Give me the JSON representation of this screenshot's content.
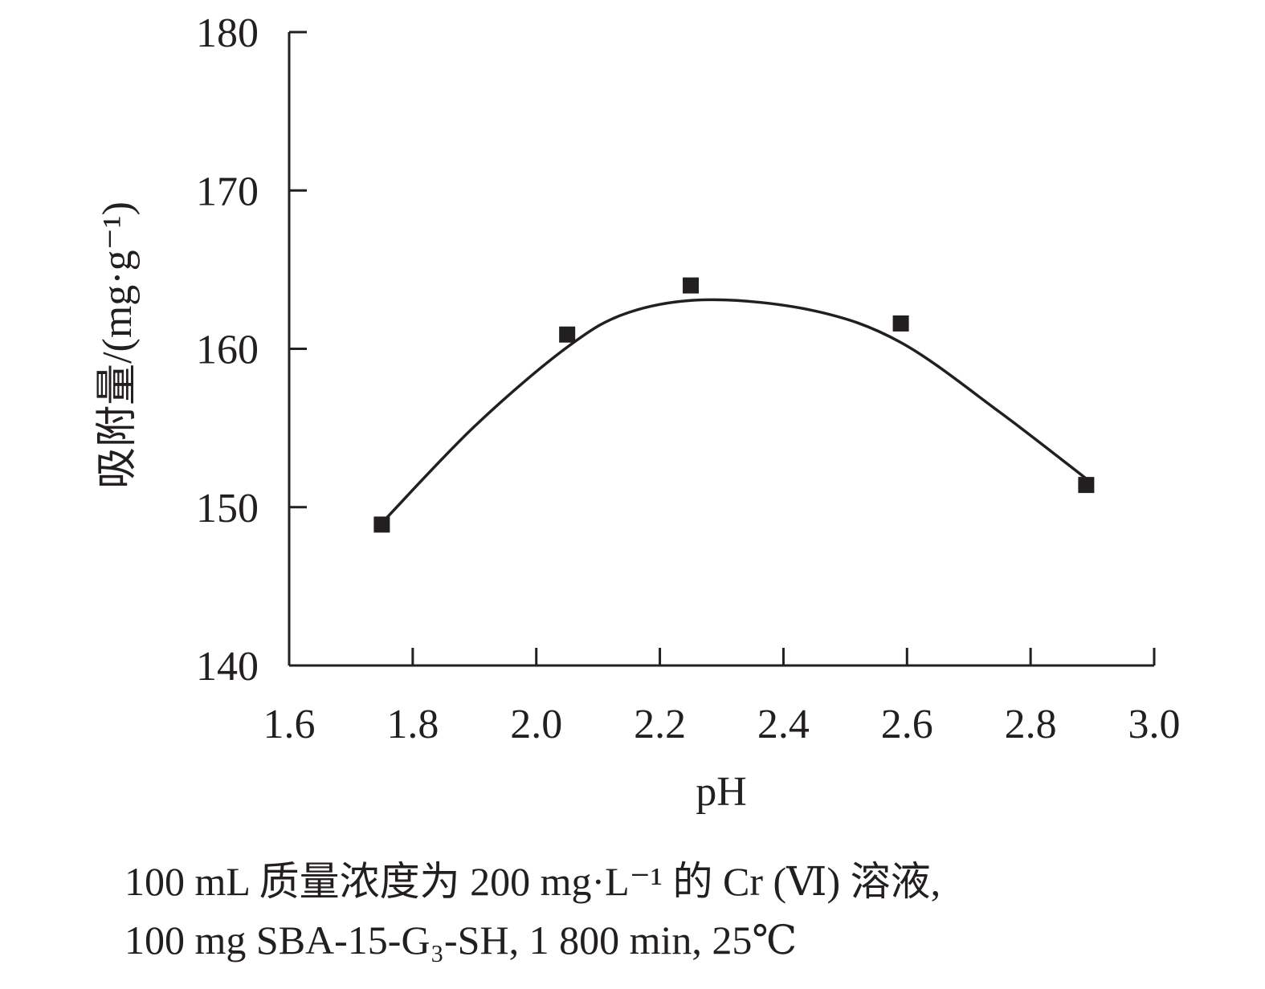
{
  "chart_data": {
    "type": "scatter",
    "x_label": "pH",
    "y_label": "吸附量/(mg·g⁻¹)",
    "caption": [
      "100 mL 质量浓度为 200 mg·L⁻¹ 的 Cr (Ⅵ) 溶液,",
      "100 mg SBA-15-G₃-SH, 1 800 min, 25℃"
    ],
    "xlim": [
      1.6,
      3.0
    ],
    "xticks": [
      1.6,
      1.8,
      {
        "value": 2,
        "label": "2.0"
      },
      2.2,
      2.4,
      2.6,
      2.8,
      {
        "value": 3,
        "label": "3.0"
      }
    ],
    "ylim": [
      140,
      180
    ],
    "yticks": [
      140,
      150,
      160,
      170,
      180
    ],
    "grid": false,
    "series": [
      {
        "style": "marker",
        "marker": "square",
        "color": "#231f20",
        "x": [
          1.75,
          2.05,
          2.25,
          2.59,
          2.89
        ],
        "values": [
          148.9,
          160.9,
          164.0,
          161.6,
          151.4
        ]
      },
      {
        "style": "curve",
        "color": "#231f20",
        "x": [
          1.75,
          1.9,
          2.05,
          2.15,
          2.28,
          2.45,
          2.59,
          2.75,
          2.89
        ],
        "values": [
          149.0,
          155.1,
          160.1,
          162.3,
          163.1,
          162.4,
          160.4,
          156.0,
          151.8
        ]
      }
    ]
  }
}
